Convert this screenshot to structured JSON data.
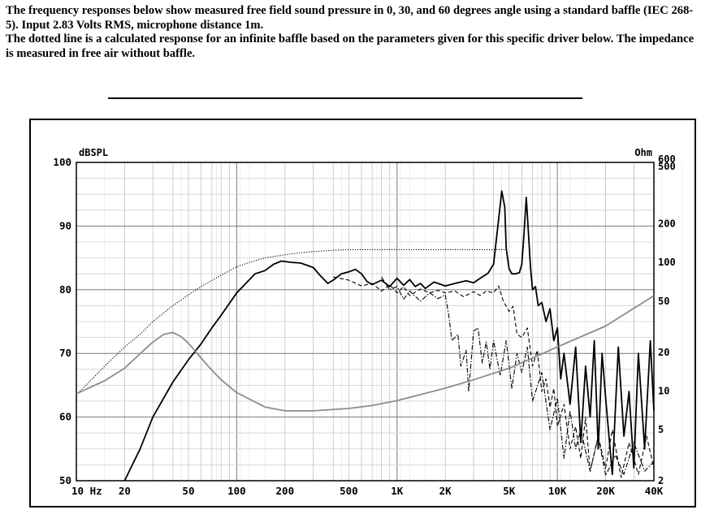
{
  "intro": {
    "line1": "The frequency responses below show measured free field sound pressure in 0, 30, and 60 degrees angle using a standard baffle (IEC 268-5).  Input 2.83 Volts RMS, microphone distance 1m.",
    "line2": "The dotted line is a calculated response for an infinite baffle based on the parameters given for this specific driver below. The impedance is measured in free air without baffle."
  },
  "chart_data": {
    "type": "line",
    "title": "",
    "xscale": "log",
    "xlim": [
      10,
      40000
    ],
    "ylim": [
      50,
      100
    ],
    "ylabel": "dBSPL",
    "y2label": "Ohm",
    "y2scale": "log",
    "y2lim": [
      2,
      600
    ],
    "xticks": [
      {
        "value": 10,
        "label": "10 Hz"
      },
      {
        "value": 20,
        "label": "20"
      },
      {
        "value": 50,
        "label": "50"
      },
      {
        "value": 100,
        "label": "100"
      },
      {
        "value": 200,
        "label": "200"
      },
      {
        "value": 500,
        "label": "500"
      },
      {
        "value": 1000,
        "label": "1K"
      },
      {
        "value": 2000,
        "label": "2K"
      },
      {
        "value": 5000,
        "label": "5K"
      },
      {
        "value": 10000,
        "label": "10K"
      },
      {
        "value": 20000,
        "label": "20K"
      },
      {
        "value": 40000,
        "label": "40K"
      }
    ],
    "yticks": [
      {
        "value": 100,
        "label": "100"
      },
      {
        "value": 90,
        "label": "90"
      },
      {
        "value": 80,
        "label": "80"
      },
      {
        "value": 70,
        "label": "70"
      },
      {
        "value": 60,
        "label": "60"
      },
      {
        "value": 50,
        "label": "50"
      }
    ],
    "y2ticks": [
      {
        "value": 600,
        "label": "600"
      },
      {
        "value": 500,
        "label": "500"
      },
      {
        "value": 200,
        "label": "200"
      },
      {
        "value": 100,
        "label": "100"
      },
      {
        "value": 50,
        "label": "50"
      },
      {
        "value": 20,
        "label": "20"
      },
      {
        "value": 10,
        "label": "10"
      },
      {
        "value": 5,
        "label": "5"
      },
      {
        "value": 2,
        "label": "2"
      }
    ],
    "grid": true,
    "series": [
      {
        "id": "spl-0deg",
        "style": "solid",
        "color": "#000000",
        "axis": "left",
        "x": [
          20,
          25,
          30,
          40,
          50,
          60,
          70,
          80,
          100,
          130,
          150,
          170,
          190,
          220,
          250,
          300,
          330,
          370,
          400,
          450,
          500,
          550,
          600,
          650,
          700,
          800,
          900,
          1000,
          1100,
          1200,
          1300,
          1400,
          1500,
          1700,
          2000,
          2300,
          2700,
          3000,
          3300,
          3700,
          4000,
          4300,
          4500,
          4700,
          4800,
          5000,
          5200,
          5500,
          5800,
          6000,
          6200,
          6400,
          6600,
          6800,
          7000,
          7300,
          7600,
          8000,
          8500,
          9000,
          9500,
          10000,
          10500,
          11000,
          12000,
          13000,
          14000,
          15000,
          16000,
          17000,
          18000,
          19000,
          20000,
          22000,
          24000,
          26000,
          28000,
          30000,
          32000,
          35000,
          38000,
          40000
        ],
        "y": [
          50,
          55,
          60,
          65.5,
          69,
          71.5,
          74,
          76,
          79.5,
          82.5,
          83,
          84,
          84.5,
          84.3,
          84.2,
          83.5,
          82.3,
          81,
          81.5,
          82.5,
          82.8,
          83.2,
          82.5,
          81.3,
          80.8,
          81.5,
          80.5,
          81.8,
          80.7,
          81.6,
          80.5,
          81,
          80.2,
          81.2,
          80.6,
          81,
          81.4,
          81.1,
          81.8,
          82.6,
          84,
          91,
          95.5,
          93,
          86.5,
          83.3,
          82.5,
          82.5,
          82.7,
          84,
          89,
          94.5,
          89,
          83.5,
          80,
          80.5,
          77.5,
          78,
          75,
          77,
          72,
          74,
          66,
          70,
          62,
          71,
          56,
          68,
          60,
          72,
          55,
          70,
          63,
          51,
          71,
          57,
          64,
          52,
          70,
          55,
          72,
          61
        ]
      },
      {
        "id": "spl-30deg",
        "style": "dashed",
        "color": "#000000",
        "axis": "left",
        "x": [
          400,
          500,
          600,
          700,
          800,
          900,
          1000,
          1100,
          1200,
          1400,
          1600,
          1800,
          2000,
          2300,
          2600,
          3000,
          3300,
          3600,
          4000,
          4300,
          4600,
          5000,
          5300,
          5600,
          6000,
          6500,
          7000,
          7500,
          8000,
          8500,
          9000,
          9500,
          10000,
          11000,
          12000,
          13000,
          14000,
          15000,
          16000,
          18000,
          20000,
          22000,
          25000,
          28000,
          32000,
          36000,
          40000
        ],
        "y": [
          82,
          81.5,
          80.6,
          81,
          79.8,
          80.8,
          79.5,
          80.5,
          79.1,
          80.1,
          79.5,
          79.9,
          79.5,
          79.8,
          78.9,
          79.7,
          79.1,
          79.8,
          79.5,
          80.6,
          78.2,
          76.6,
          77.4,
          73,
          72.5,
          74,
          68,
          70.5,
          64,
          66,
          61.5,
          64.5,
          58.5,
          62,
          55,
          58.5,
          53.5,
          60,
          51.5,
          57,
          52,
          58,
          50.5,
          56,
          51,
          57,
          52
        ]
      },
      {
        "id": "spl-60deg",
        "style": "dash-dot",
        "color": "#000000",
        "axis": "left",
        "x": [
          800,
          900,
          1000,
          1100,
          1200,
          1400,
          1600,
          1800,
          2000,
          2100,
          2200,
          2400,
          2500,
          2700,
          2800,
          3000,
          3200,
          3400,
          3600,
          3800,
          4000,
          4400,
          4800,
          5200,
          5600,
          6000,
          6500,
          7000,
          8000,
          9000,
          10000,
          11000,
          12000,
          13000,
          14000,
          16000,
          18000,
          20000,
          23000,
          26000,
          30000,
          35000,
          40000
        ],
        "y": [
          82,
          80,
          80.5,
          78.5,
          79.8,
          78.2,
          79.5,
          78.6,
          79.2,
          76,
          72,
          73,
          68,
          70.5,
          64,
          73.5,
          74,
          68.5,
          71.8,
          67.5,
          72,
          66.5,
          72,
          64.5,
          70,
          67,
          71,
          62.5,
          67,
          58,
          63,
          53.5,
          61,
          55,
          58,
          51.5,
          57,
          50.8,
          54,
          51,
          56,
          51.5,
          53
        ]
      },
      {
        "id": "spl-infinite-baffle",
        "style": "dotted",
        "color": "#000000",
        "axis": "left",
        "x": [
          10,
          12,
          15,
          20,
          25,
          30,
          40,
          50,
          60,
          80,
          100,
          120,
          150,
          200,
          250,
          300,
          400,
          500,
          600,
          800,
          1000,
          2000,
          3000,
          4000,
          4800
        ],
        "y": [
          63.5,
          65.5,
          68,
          71,
          73,
          75,
          77.5,
          79.2,
          80.5,
          82.3,
          83.6,
          84.3,
          85,
          85.5,
          85.8,
          86,
          86.2,
          86.3,
          86.3,
          86.3,
          86.3,
          86.3,
          86.3,
          86.3,
          86.3
        ]
      },
      {
        "id": "impedance",
        "style": "solid",
        "color": "#8c8c8c",
        "axis": "right",
        "x": [
          10,
          15,
          20,
          25,
          30,
          35,
          40,
          45,
          50,
          60,
          70,
          80,
          100,
          150,
          200,
          300,
          500,
          700,
          1000,
          2000,
          3000,
          5000,
          7000,
          10000,
          20000,
          40000
        ],
        "y": [
          9.5,
          12,
          15,
          19.5,
          24,
          27.5,
          28.5,
          26.5,
          23.5,
          18,
          14.5,
          12.2,
          9.7,
          7.5,
          7.0,
          7.0,
          7.3,
          7.7,
          8.4,
          10.5,
          12.2,
          15,
          18,
          22,
          32,
          55
        ]
      }
    ]
  }
}
